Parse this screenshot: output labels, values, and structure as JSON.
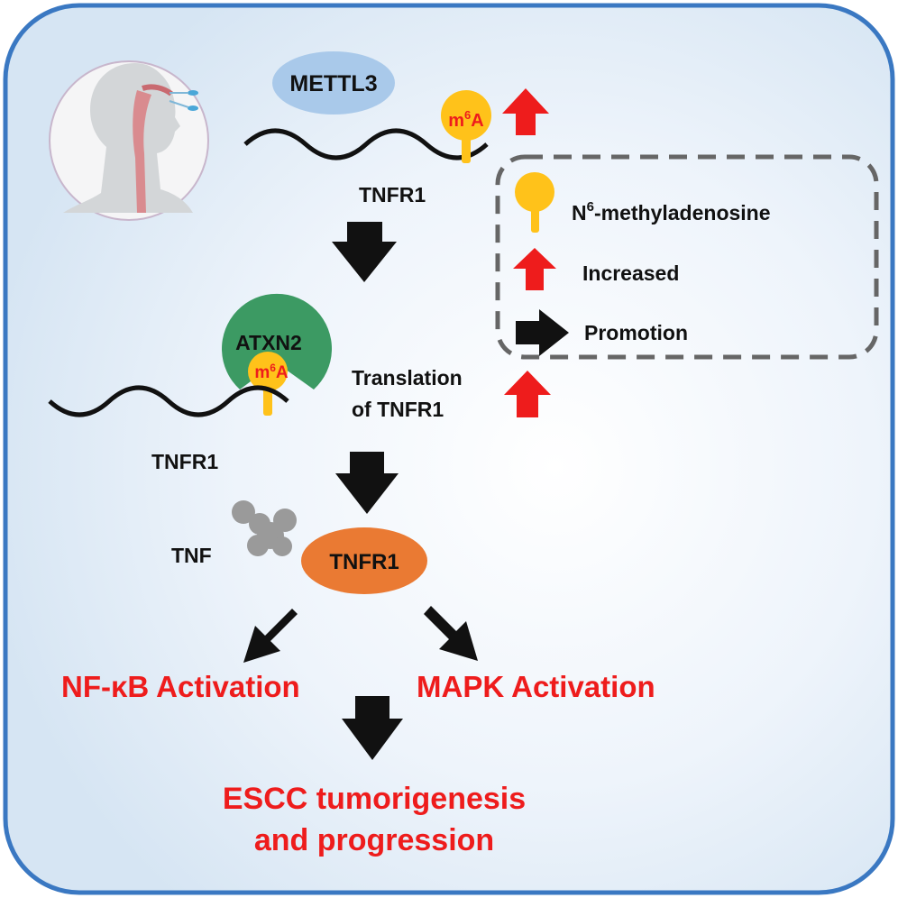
{
  "labels": {
    "mettl3": "METTL3",
    "m6a_base": "m",
    "m6a_sup": "6",
    "m6a_tail": "A",
    "tnfr1_mrna_top": "TNFR1",
    "atxn2": "ATXN2",
    "tnfr1_mrna_left": "TNFR1",
    "translation_line1": "Translation",
    "translation_line2": "of TNFR1",
    "tnf": "TNF",
    "tnfr1_receptor": "TNFR1",
    "nfkb": "NF-κB Activation",
    "mapk": "MAPK Activation",
    "escc_line1": "ESCC tumorigenesis",
    "escc_line2": "and progression"
  },
  "legend": {
    "n6_base": "N",
    "n6_sup": "6",
    "n6_tail": "-methyladenosine",
    "increased": "Increased",
    "promotion": "Promotion"
  },
  "colors": {
    "frame_border": "#3a78c2",
    "background": "#e4eef8",
    "mettl3_fill": "#a9c9ea",
    "atxn2_fill": "#3c9a63",
    "tnfr1_fill": "#ea7a33",
    "m6a_pin": "#ffc21a",
    "red_accent": "#ee1c1c",
    "tnf_gray": "#9a9a9a",
    "arrow_black": "#111111"
  },
  "icons": [
    "head-anatomy-icon",
    "m6a-pin-icon",
    "up-arrow-icon",
    "down-arrow-icon",
    "tnf-cluster-icon"
  ]
}
